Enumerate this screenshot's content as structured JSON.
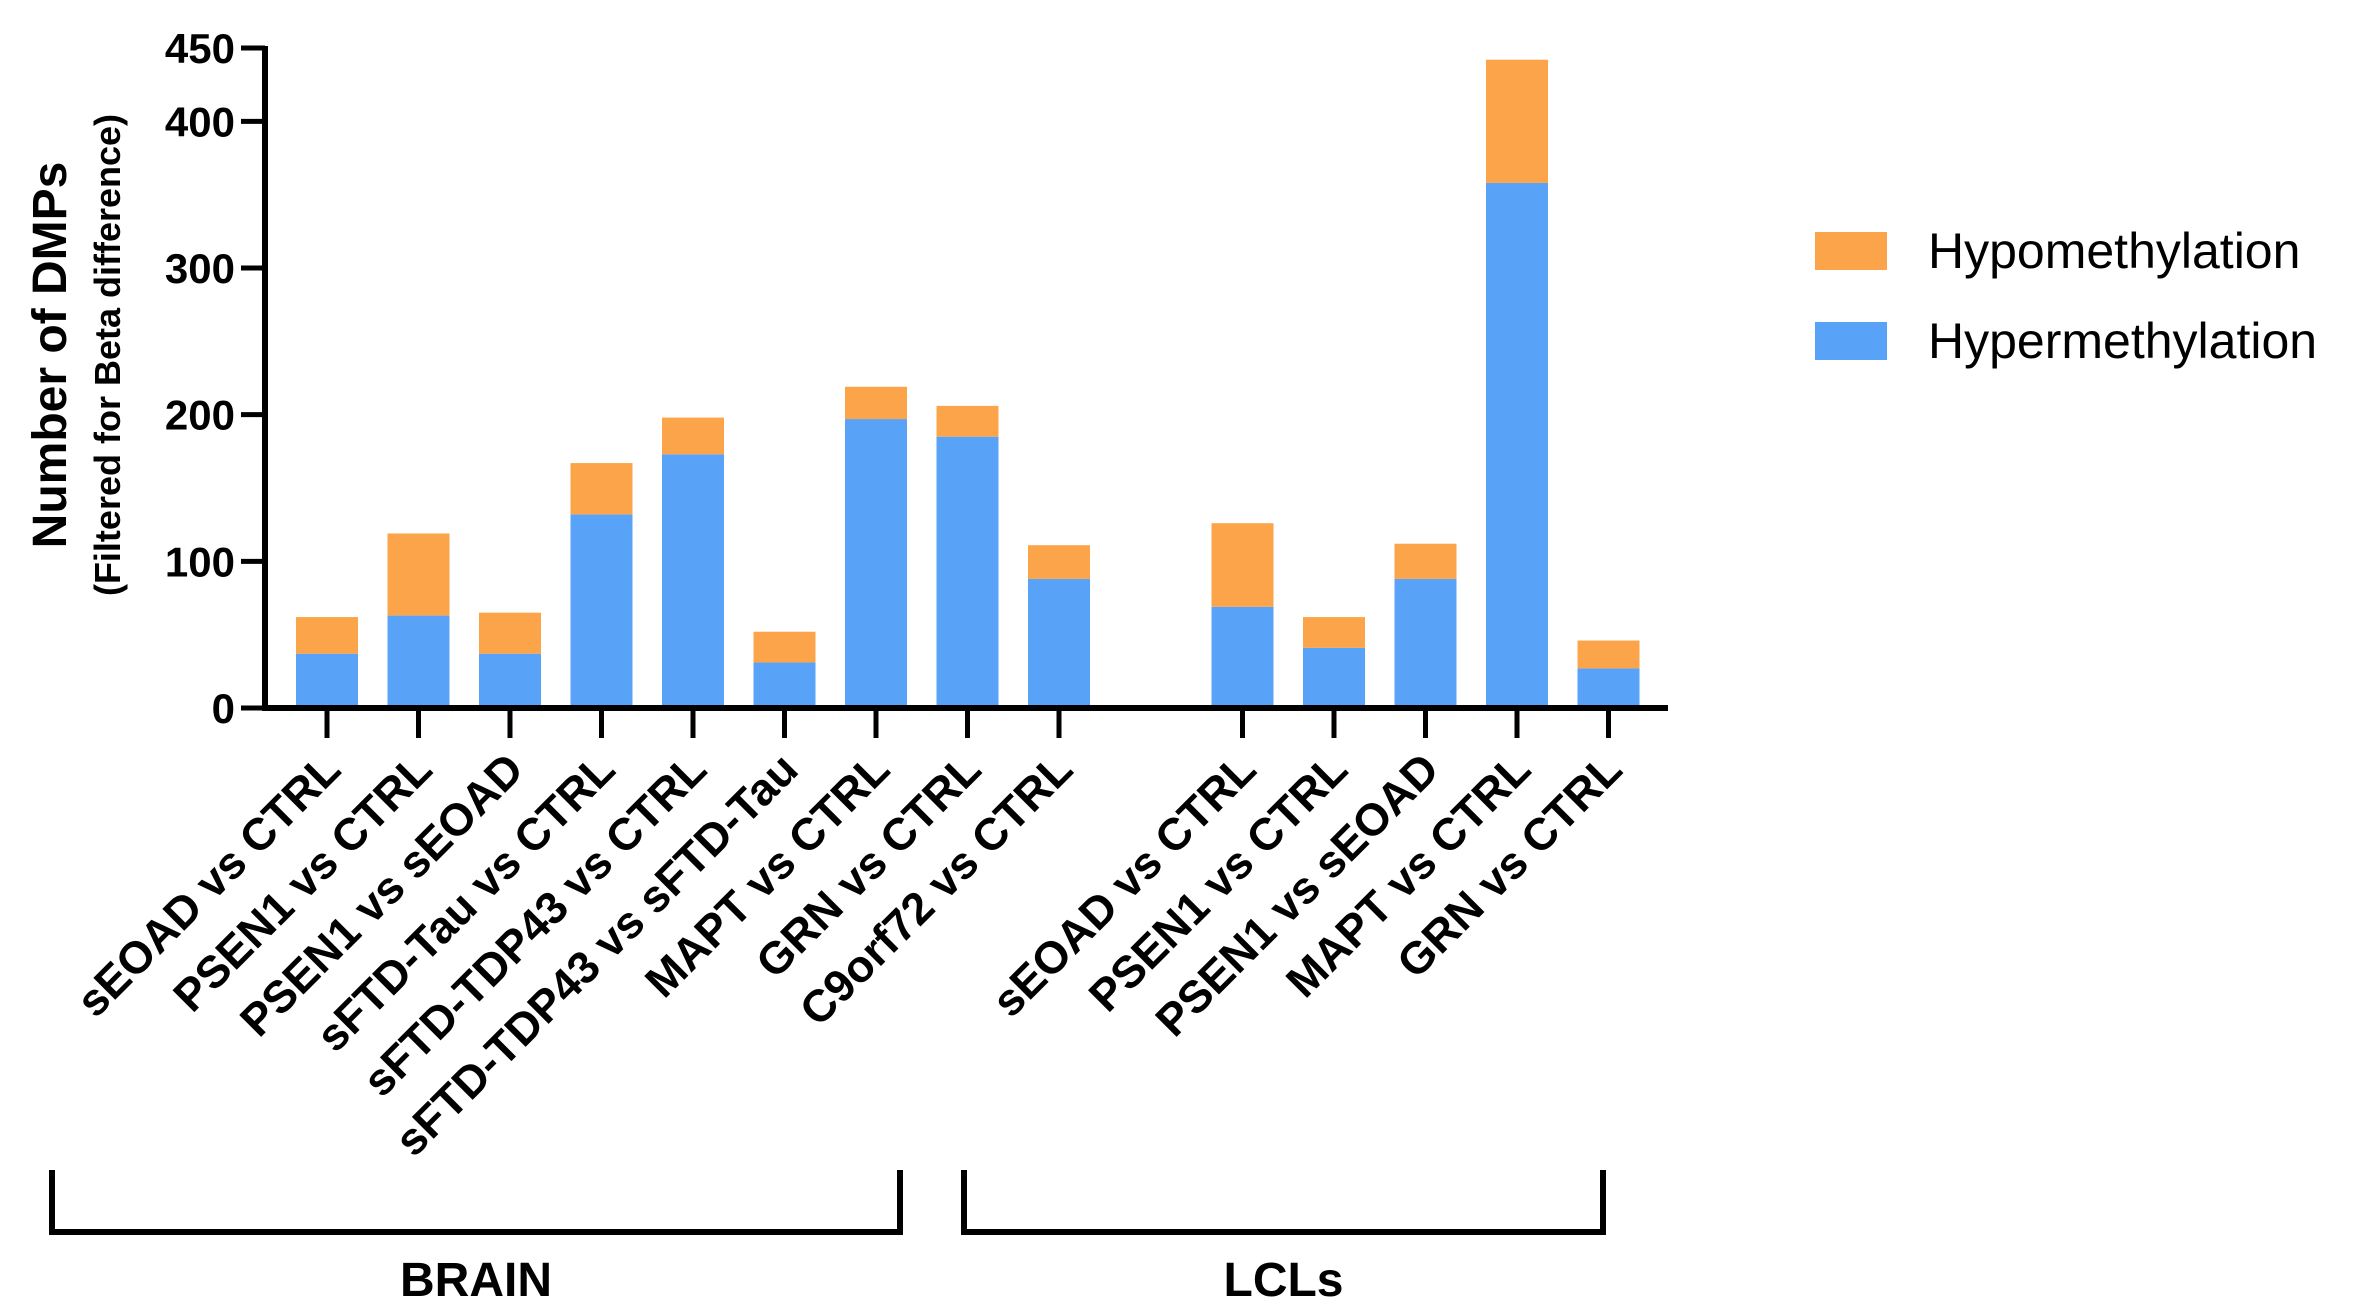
{
  "chart_data": {
    "type": "bar",
    "stacked": true,
    "ylabel": "Number of DMPs",
    "ylabel_sub": "(Filtered for Beta difference)",
    "ylim": [
      0,
      450
    ],
    "yticks": [
      0,
      100,
      200,
      300,
      400,
      450
    ],
    "ytick_labels": [
      "0",
      "100",
      "200",
      "300",
      "400",
      "450"
    ],
    "categories": [
      "sEOAD vs CTRL",
      "PSEN1 vs CTRL",
      "PSEN1 vs sEOAD",
      "sFTD-Tau vs CTRL",
      "sFTD-TDP43 vs CTRL",
      "sFTD-TDP43 vs sFTD-Tau",
      "MAPT vs CTRL",
      "GRN vs CTRL",
      "C9orf72 vs CTRL",
      "sEOAD vs CTRL",
      "PSEN1 vs CTRL",
      "PSEN1 vs sEOAD",
      "MAPT vs CTRL",
      "GRN vs CTRL"
    ],
    "groups": [
      {
        "label": "BRAIN",
        "first": 0,
        "last": 8
      },
      {
        "label": "LCLs",
        "first": 9,
        "last": 13
      }
    ],
    "series": [
      {
        "name": "Hypermethylation",
        "color": "#58a3f8",
        "values": [
          37,
          63,
          37,
          132,
          173,
          31,
          197,
          185,
          88,
          69,
          41,
          88,
          358,
          27
        ]
      },
      {
        "name": "Hypomethylation",
        "color": "#fca44a",
        "values": [
          25,
          56,
          28,
          35,
          25,
          21,
          22,
          21,
          23,
          57,
          21,
          24,
          84,
          19
        ]
      }
    ],
    "legend": {
      "placement": "right",
      "entries": [
        {
          "name": "Hypomethylation",
          "color": "#fca44a"
        },
        {
          "name": "Hypermethylation",
          "color": "#58a3f8"
        }
      ]
    }
  }
}
